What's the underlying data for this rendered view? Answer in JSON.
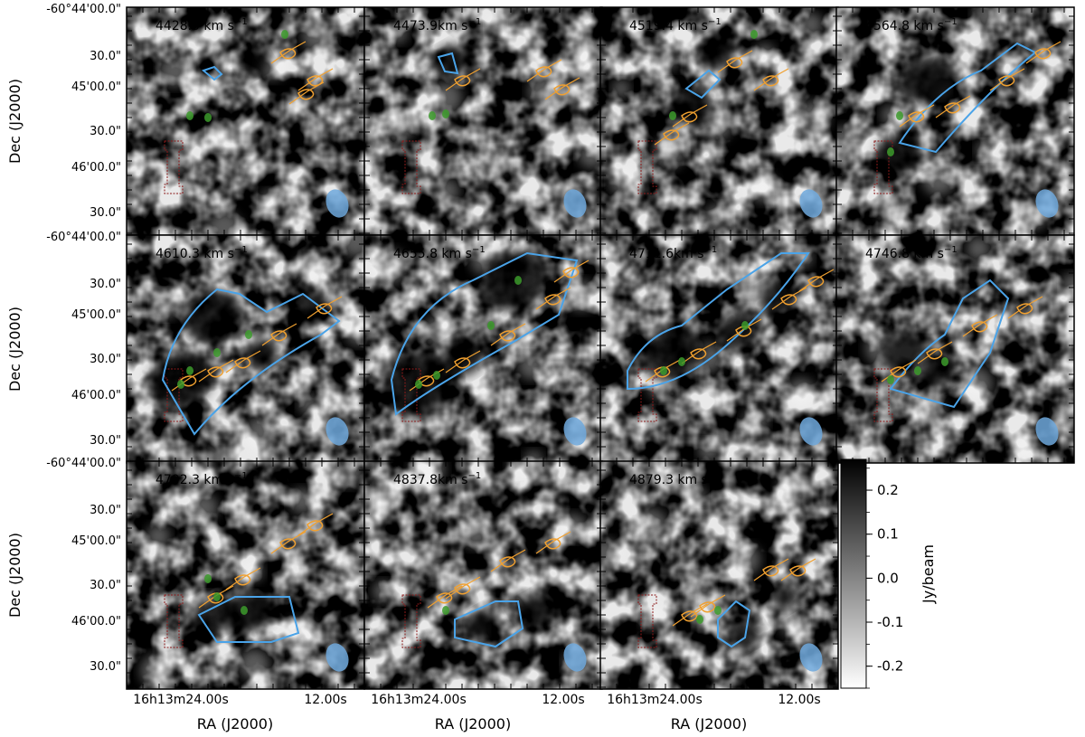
{
  "figure": {
    "panels": [
      {
        "velocity": "4428.5 km s",
        "exp": "−1"
      },
      {
        "velocity": "4473.9km s",
        "exp": "−1"
      },
      {
        "velocity": "4519.4 km s",
        "exp": "−1"
      },
      {
        "velocity": "4564.8 km s",
        "exp": "−1"
      },
      {
        "velocity": "4610.3 km s",
        "exp": "−1"
      },
      {
        "velocity": "4655.8 km s",
        "exp": "−1"
      },
      {
        "velocity": "4711.6km s",
        "exp": "−1"
      },
      {
        "velocity": "4746.8 km s",
        "exp": "−1"
      },
      {
        "velocity": "4792.3 km s",
        "exp": "−1"
      },
      {
        "velocity": "4837.8km s",
        "exp": "−1"
      },
      {
        "velocity": "4879.3 km s",
        "exp": "−1"
      }
    ],
    "dec_ticks": [
      "-60°44'00.0\"",
      "30.0\"",
      "45'00.0\"",
      "30.0\"",
      "46'00.0\"",
      "30.0\""
    ],
    "ra_ticks": [
      "16h13m24.00s",
      "12.00s"
    ],
    "ylabel": "Dec (J2000)",
    "xlabel": "RA (J2000)",
    "colorbar": {
      "label": "Jy/beam",
      "ticks": [
        "0.2",
        "0.1",
        "0.0",
        "-0.1",
        "-0.2"
      ],
      "range": [
        -0.25,
        0.27
      ]
    },
    "colors": {
      "blue_contour": "#4aa3e8",
      "orange_contour": "#f0a030",
      "green_contour": "#3c9a2c",
      "red_contour": "#8b1a1a",
      "beam": "#6fa8dc"
    }
  }
}
